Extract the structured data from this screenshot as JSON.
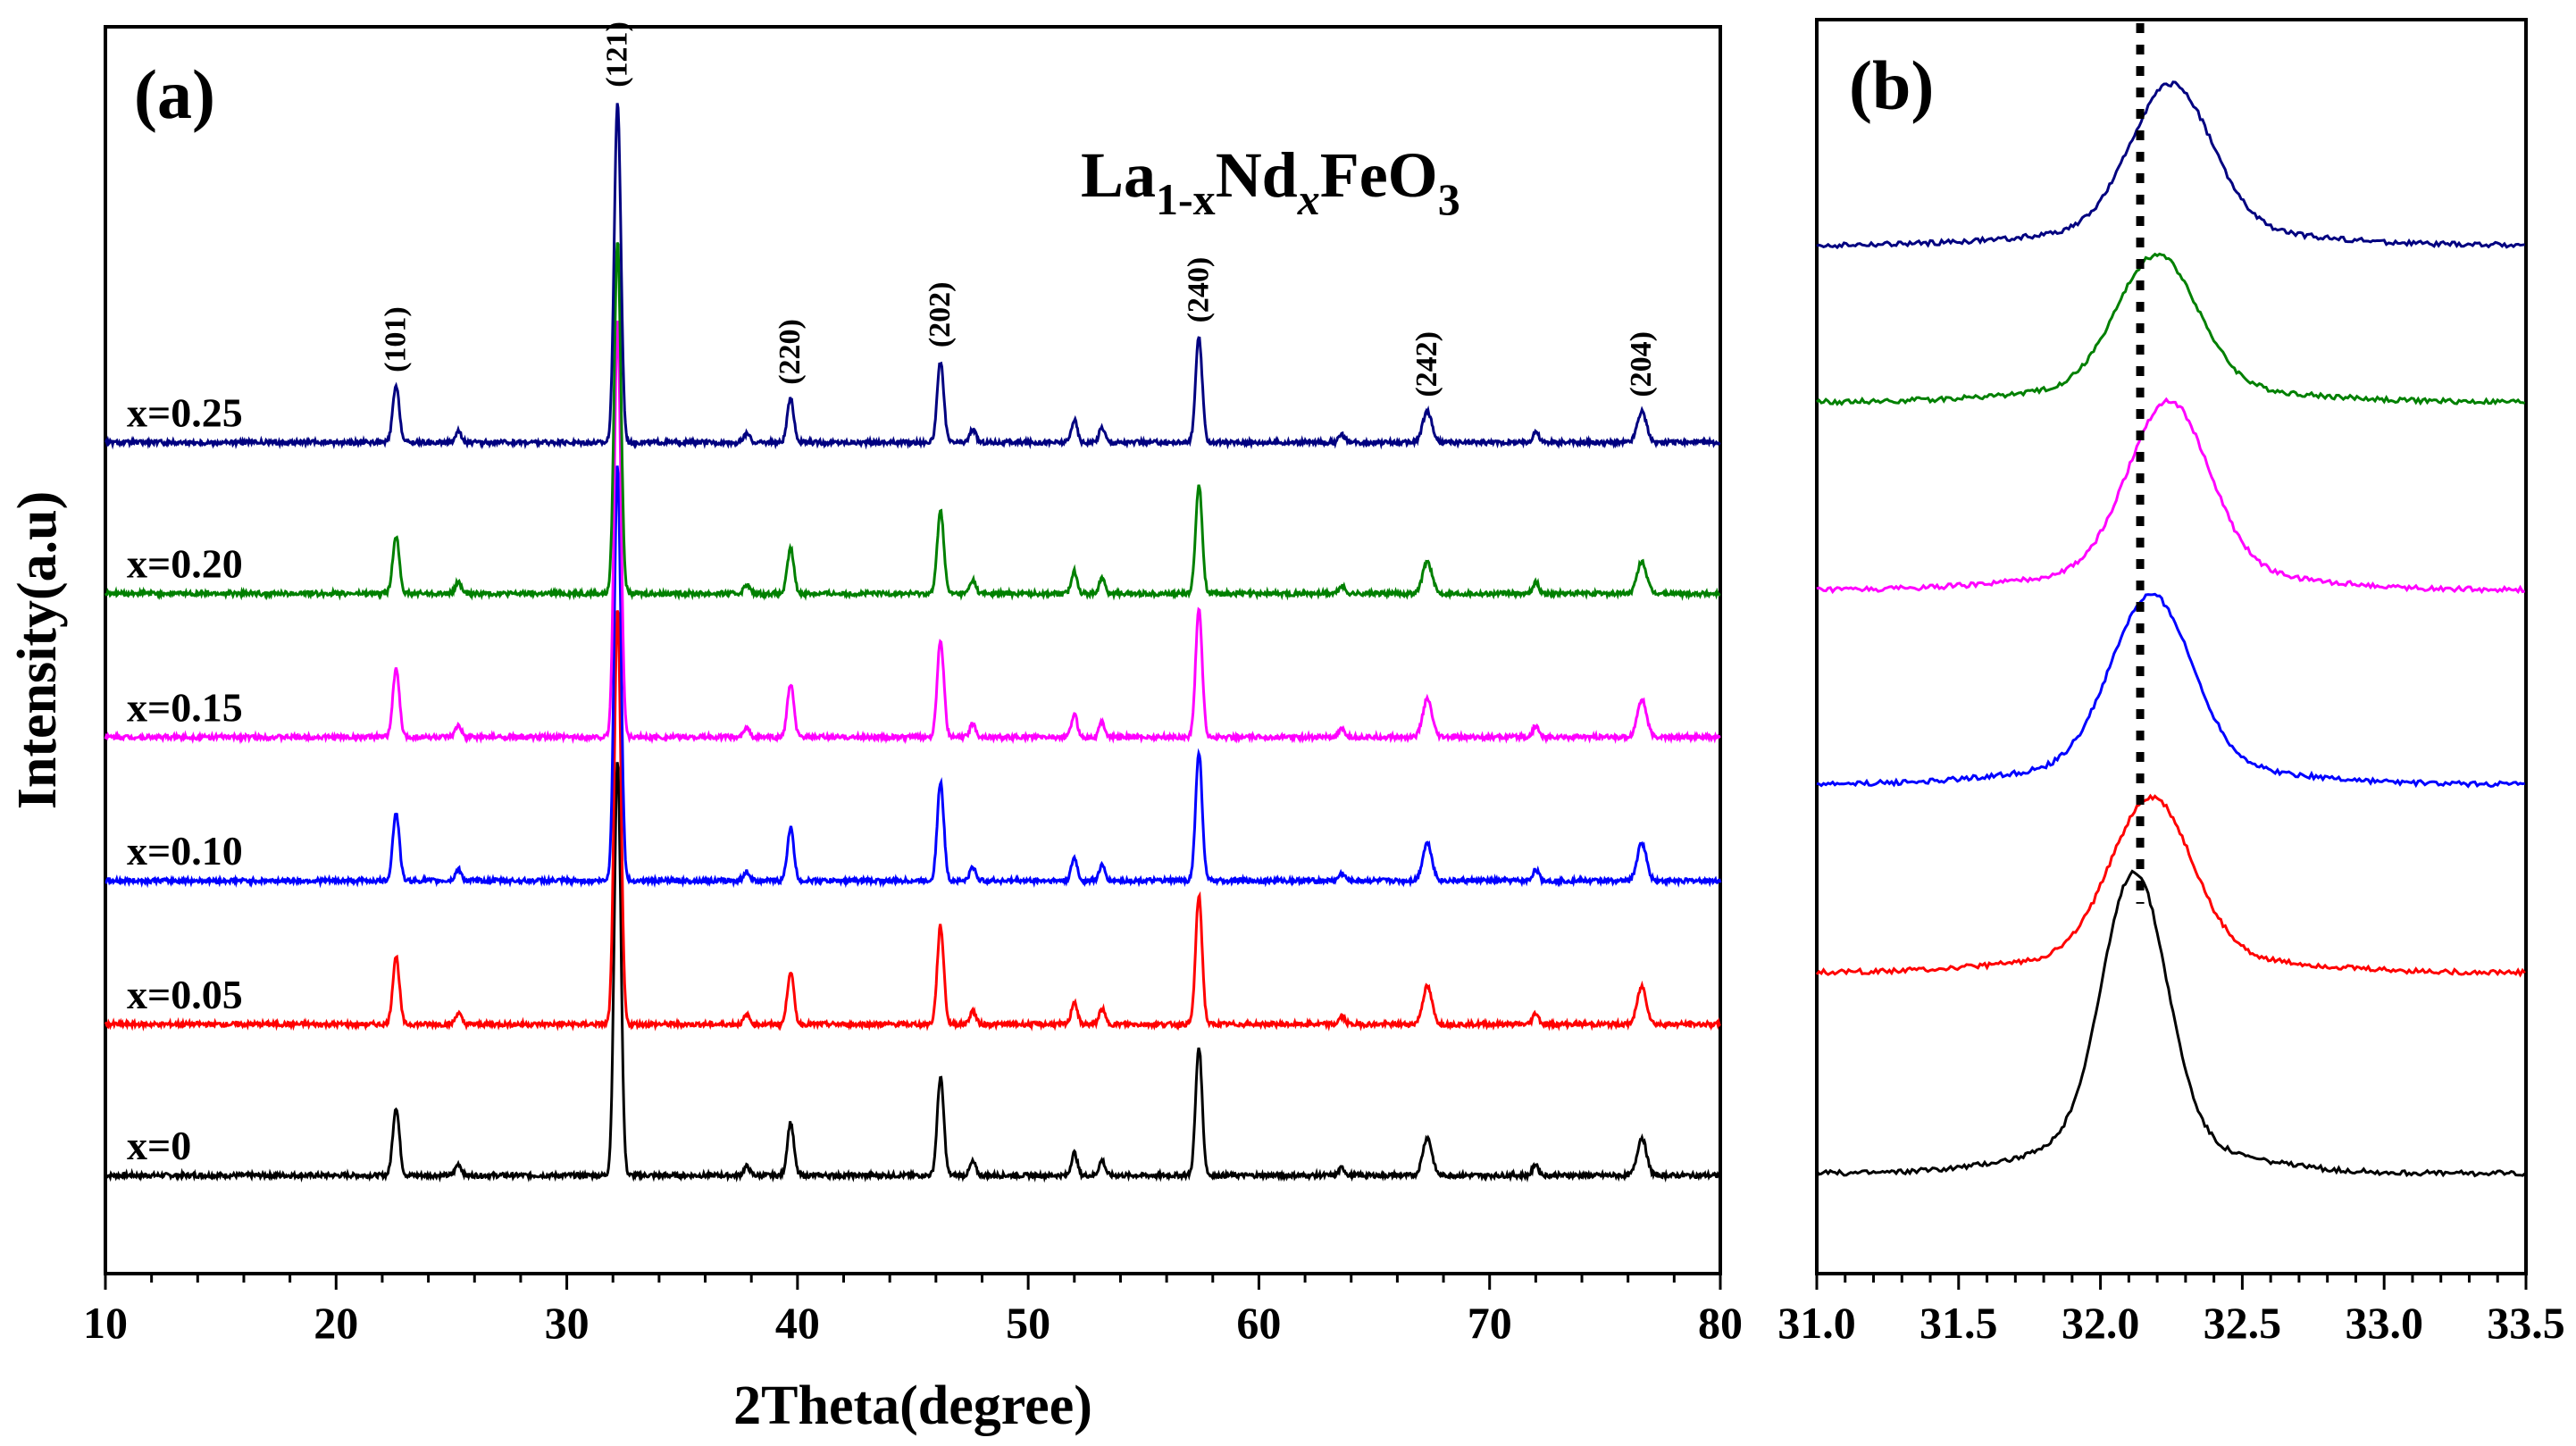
{
  "chart_data": [
    {
      "panel": "(a)",
      "type": "line",
      "title": "La1-xNdxFeO3",
      "formula_parts": {
        "el1": "La",
        "sub1": "1-x",
        "el2": "Nd",
        "sub2": "x",
        "el3": "FeO",
        "sub3": "3"
      },
      "xlabel": "2Theta(degree)",
      "ylabel": "Intensity(a.u)",
      "xlim": [
        10,
        80
      ],
      "xticks": [
        10,
        20,
        30,
        40,
        50,
        60,
        70,
        80
      ],
      "xtick_labels": [
        "10",
        "20",
        "30",
        "40",
        "50",
        "60",
        "70",
        "80"
      ],
      "peaks": [
        {
          "label": "(101)",
          "x": 22.6,
          "height": 0.09
        },
        {
          "label": "(121)",
          "x": 32.2,
          "height": 0.55
        },
        {
          "label": "(220)",
          "x": 39.7,
          "height": 0.07
        },
        {
          "label": "(202)",
          "x": 46.2,
          "height": 0.13
        },
        {
          "label": "(240)",
          "x": 57.4,
          "height": 0.17
        },
        {
          "label": "(242)",
          "x": 67.3,
          "height": 0.05
        },
        {
          "label": "(204)",
          "x": 76.6,
          "height": 0.05
        }
      ],
      "minor_peaks": [
        {
          "x": 25.3,
          "height": 0.015
        },
        {
          "x": 37.8,
          "height": 0.012
        },
        {
          "x": 47.6,
          "height": 0.018
        },
        {
          "x": 52.0,
          "height": 0.03
        },
        {
          "x": 53.2,
          "height": 0.02
        },
        {
          "x": 63.6,
          "height": 0.01
        },
        {
          "x": 72.0,
          "height": 0.015
        }
      ],
      "series": [
        {
          "name": "x=0",
          "color": "#000000",
          "baseline": 0.13,
          "scale": 1.0
        },
        {
          "name": "x=0.05",
          "color": "#ff0000",
          "baseline": 0.33,
          "scale": 1.0
        },
        {
          "name": "x=0.10",
          "color": "#0000ff",
          "baseline": 0.52,
          "scale": 1.0
        },
        {
          "name": "x=0.15",
          "color": "#ff00ff",
          "baseline": 0.71,
          "scale": 1.0
        },
        {
          "name": "x=0.20",
          "color": "#008000",
          "baseline": 0.9,
          "scale": 0.85
        },
        {
          "name": "x=0.25",
          "color": "#000080",
          "baseline": 1.1,
          "scale": 0.82
        }
      ],
      "ylim": [
        0,
        1.65
      ]
    },
    {
      "panel": "(b)",
      "type": "line",
      "xlabel": "",
      "ylabel": "",
      "xlim": [
        31.0,
        33.5
      ],
      "xticks": [
        31.0,
        31.5,
        32.0,
        32.5,
        33.0,
        33.5
      ],
      "xtick_labels": [
        "31.0",
        "31.5",
        "32.0",
        "32.5",
        "33.0",
        "33.5"
      ],
      "reference_line_x": 32.14,
      "series": [
        {
          "name": "x=0",
          "color": "#000000",
          "baseline": 0.08,
          "peak_center": 32.12,
          "peak_height": 0.215,
          "width": 0.16
        },
        {
          "name": "x=0.05",
          "color": "#ff0000",
          "baseline": 0.24,
          "peak_center": 32.18,
          "peak_height": 0.125,
          "width": 0.2
        },
        {
          "name": "x=0.10",
          "color": "#0000ff",
          "baseline": 0.39,
          "peak_center": 32.18,
          "peak_height": 0.135,
          "width": 0.2
        },
        {
          "name": "x=0.15",
          "color": "#ff00ff",
          "baseline": 0.545,
          "peak_center": 32.24,
          "peak_height": 0.135,
          "width": 0.2
        },
        {
          "name": "x=0.20",
          "color": "#008000",
          "baseline": 0.695,
          "peak_center": 32.2,
          "peak_height": 0.105,
          "width": 0.2
        },
        {
          "name": "x=0.25",
          "color": "#000080",
          "baseline": 0.82,
          "peak_center": 32.25,
          "peak_height": 0.115,
          "width": 0.2
        }
      ],
      "ylim": [
        0,
        1.0
      ]
    }
  ]
}
